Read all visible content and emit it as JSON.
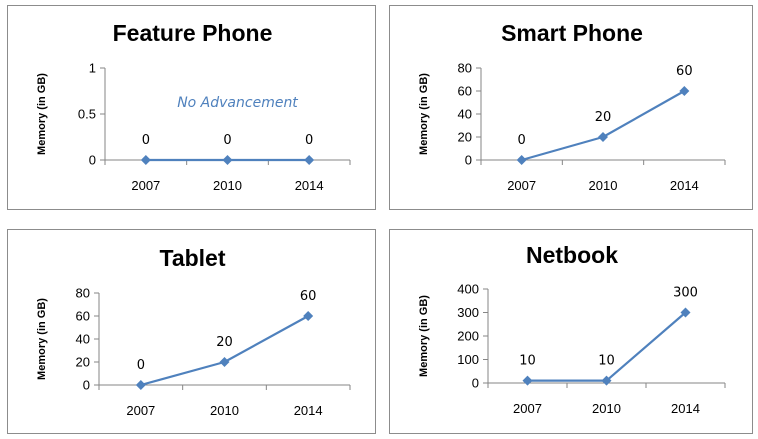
{
  "chart_data": [
    {
      "type": "line",
      "title": "Feature Phone",
      "ylabel": "Memory (in GB)",
      "categories": [
        "2007",
        "2010",
        "2014"
      ],
      "values": [
        0,
        0,
        0
      ],
      "data_labels": [
        "0",
        "0",
        "0"
      ],
      "ylim": [
        0,
        1
      ],
      "yticks": [
        "0",
        "0.5",
        "1"
      ],
      "annotation": "No Advancement",
      "grid": false,
      "legend": "none",
      "series_color": "#4f81bd"
    },
    {
      "type": "line",
      "title": "Smart Phone",
      "ylabel": "Memory (in GB)",
      "categories": [
        "2007",
        "2010",
        "2014"
      ],
      "values": [
        0,
        20,
        60
      ],
      "data_labels": [
        "0",
        "20",
        "60"
      ],
      "ylim": [
        0,
        80
      ],
      "yticks": [
        "0",
        "20",
        "40",
        "60",
        "80"
      ],
      "annotation": "",
      "grid": false,
      "legend": "none",
      "series_color": "#4f81bd"
    },
    {
      "type": "line",
      "title": "Tablet",
      "ylabel": "Memory (in GB)",
      "categories": [
        "2007",
        "2010",
        "2014"
      ],
      "values": [
        0,
        20,
        60
      ],
      "data_labels": [
        "0",
        "20",
        "60"
      ],
      "ylim": [
        0,
        80
      ],
      "yticks": [
        "0",
        "20",
        "40",
        "60",
        "80"
      ],
      "annotation": "",
      "grid": false,
      "legend": "none",
      "series_color": "#4f81bd"
    },
    {
      "type": "line",
      "title": "Netbook",
      "ylabel": "Memory (in GB)",
      "categories": [
        "2007",
        "2010",
        "2014"
      ],
      "values": [
        10,
        10,
        300
      ],
      "data_labels": [
        "10",
        "10",
        "300"
      ],
      "ylim": [
        0,
        400
      ],
      "yticks": [
        "0",
        "100",
        "200",
        "300",
        "400"
      ],
      "annotation": "",
      "grid": false,
      "legend": "none",
      "series_color": "#4f81bd"
    }
  ]
}
